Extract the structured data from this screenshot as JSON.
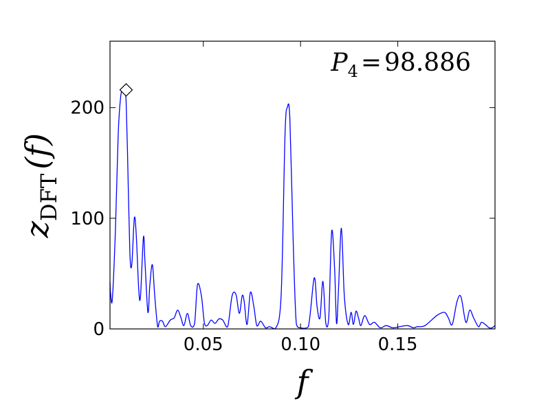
{
  "chart_data": {
    "type": "line",
    "title": "",
    "xlabel": "f",
    "ylabel": {
      "main": "z",
      "sub": "DFT",
      "arg": "(f)"
    },
    "xlim": [
      0.002,
      0.2
    ],
    "ylim": [
      0,
      260
    ],
    "grid": false,
    "legend": "none",
    "xticks": [
      0.05,
      0.1,
      0.15
    ],
    "xtick_labels": [
      "0.05",
      "0.10",
      "0.15"
    ],
    "yticks": [
      0,
      100,
      200
    ],
    "ytick_labels": [
      "0",
      "100",
      "200"
    ],
    "annotation": {
      "symbol": "P",
      "sub": "4",
      "eq": "=",
      "value": "98.886"
    },
    "marker": {
      "x": 0.0103,
      "y": 216,
      "shape": "diamond"
    },
    "series": [
      {
        "color": "#0000ff",
        "x": [
          0.002,
          0.0023,
          0.0032,
          0.0048,
          0.0062,
          0.0075,
          0.0087,
          0.0097,
          0.0103,
          0.011,
          0.0122,
          0.0132,
          0.0145,
          0.0155,
          0.0168,
          0.0177,
          0.0192,
          0.02,
          0.0215,
          0.0225,
          0.0238,
          0.025,
          0.0265,
          0.0275,
          0.029,
          0.0305,
          0.033,
          0.035,
          0.0368,
          0.0385,
          0.04,
          0.0418,
          0.0435,
          0.0455,
          0.047,
          0.049,
          0.0505,
          0.052,
          0.054,
          0.056,
          0.058,
          0.06,
          0.0625,
          0.0648,
          0.0668,
          0.0685,
          0.07,
          0.071,
          0.0725,
          0.0742,
          0.076,
          0.0775,
          0.0795,
          0.082,
          0.084,
          0.087,
          0.09,
          0.092,
          0.0932,
          0.0945,
          0.0962,
          0.0978,
          0.1,
          0.104,
          0.107,
          0.1085,
          0.11,
          0.1115,
          0.113,
          0.1145,
          0.116,
          0.1175,
          0.1185,
          0.1195,
          0.121,
          0.1225,
          0.1245,
          0.126,
          0.1272,
          0.1285,
          0.1298,
          0.131,
          0.133,
          0.1355,
          0.138,
          0.141,
          0.144,
          0.1475,
          0.151,
          0.155,
          0.158,
          0.16,
          0.164,
          0.17,
          0.174,
          0.176,
          0.178,
          0.1805,
          0.1825,
          0.185,
          0.187,
          0.189,
          0.1915,
          0.193,
          0.195,
          0.197,
          0.1985,
          0.2
        ],
        "y": [
          42,
          32,
          27,
          90,
          175,
          210,
          216,
          214,
          205,
          160,
          70,
          58,
          100,
          85,
          35,
          30,
          83,
          60,
          15,
          40,
          58,
          30,
          2,
          7,
          7,
          2,
          8,
          10,
          17,
          10,
          3,
          14,
          3,
          5,
          40,
          30,
          6,
          3,
          8,
          5,
          9,
          8,
          2,
          30,
          31,
          14,
          30,
          25,
          4,
          33,
          20,
          3,
          7,
          1,
          2,
          0,
          30,
          175,
          200,
          190,
          80,
          5,
          1,
          2,
          46,
          20,
          10,
          43,
          5,
          10,
          88,
          55,
          5,
          35,
          91,
          30,
          4,
          15,
          4,
          16,
          10,
          3,
          12,
          4,
          6,
          1,
          3,
          1,
          2,
          3,
          1,
          2,
          3,
          12,
          15,
          10,
          4,
          25,
          29,
          6,
          17,
          10,
          2,
          6,
          4,
          1,
          1,
          3
        ]
      }
    ]
  }
}
